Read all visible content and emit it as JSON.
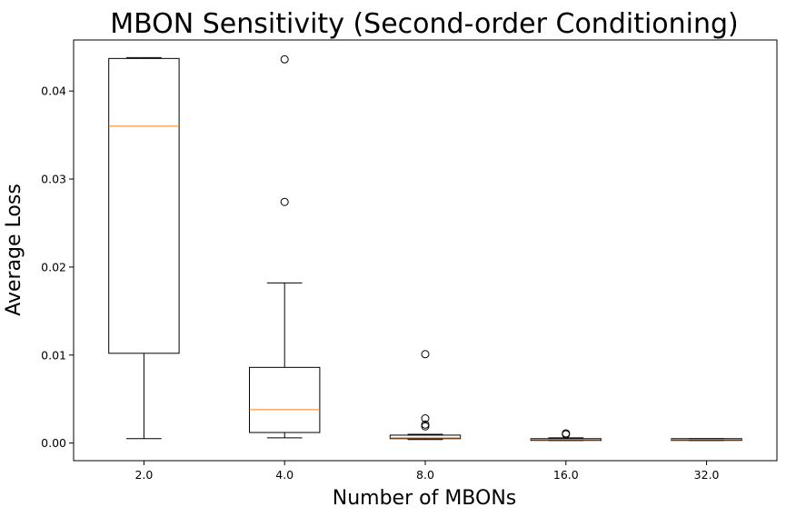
{
  "chart_data": {
    "type": "box",
    "title": "MBON Sensitivity (Second-order Conditioning)",
    "xlabel": "Number of MBONs",
    "ylabel": "Average Loss",
    "categories": [
      "2.0",
      "4.0",
      "8.0",
      "16.0",
      "32.0"
    ],
    "yticks": [
      "0.00",
      "0.01",
      "0.02",
      "0.03",
      "0.04"
    ],
    "ylim": [
      -0.002,
      0.0458
    ],
    "grid": false,
    "colors": {
      "box": "#000000",
      "median": "#ff7f0e"
    },
    "boxes": [
      {
        "category": "2.0",
        "whisker_low": 0.0005,
        "q1": 0.0102,
        "median": 0.036,
        "q3": 0.0437,
        "whisker_high": 0.0438,
        "outliers": []
      },
      {
        "category": "4.0",
        "whisker_low": 0.0006,
        "q1": 0.0012,
        "median": 0.0038,
        "q3": 0.0086,
        "whisker_high": 0.0182,
        "outliers": [
          0.0274,
          0.0436
        ]
      },
      {
        "category": "8.0",
        "whisker_low": 0.0004,
        "q1": 0.0005,
        "median": 0.0006,
        "q3": 0.0009,
        "whisker_high": 0.001,
        "outliers": [
          0.0101,
          0.0028,
          0.0021,
          0.0019
        ]
      },
      {
        "category": "16.0",
        "whisker_low": 0.0003,
        "q1": 0.0003,
        "median": 0.0004,
        "q3": 0.0005,
        "whisker_high": 0.0006,
        "outliers": [
          0.0011,
          0.001
        ]
      },
      {
        "category": "32.0",
        "whisker_low": 0.0003,
        "q1": 0.0003,
        "median": 0.0004,
        "q3": 0.0005,
        "whisker_high": 0.0005,
        "outliers": []
      }
    ]
  }
}
